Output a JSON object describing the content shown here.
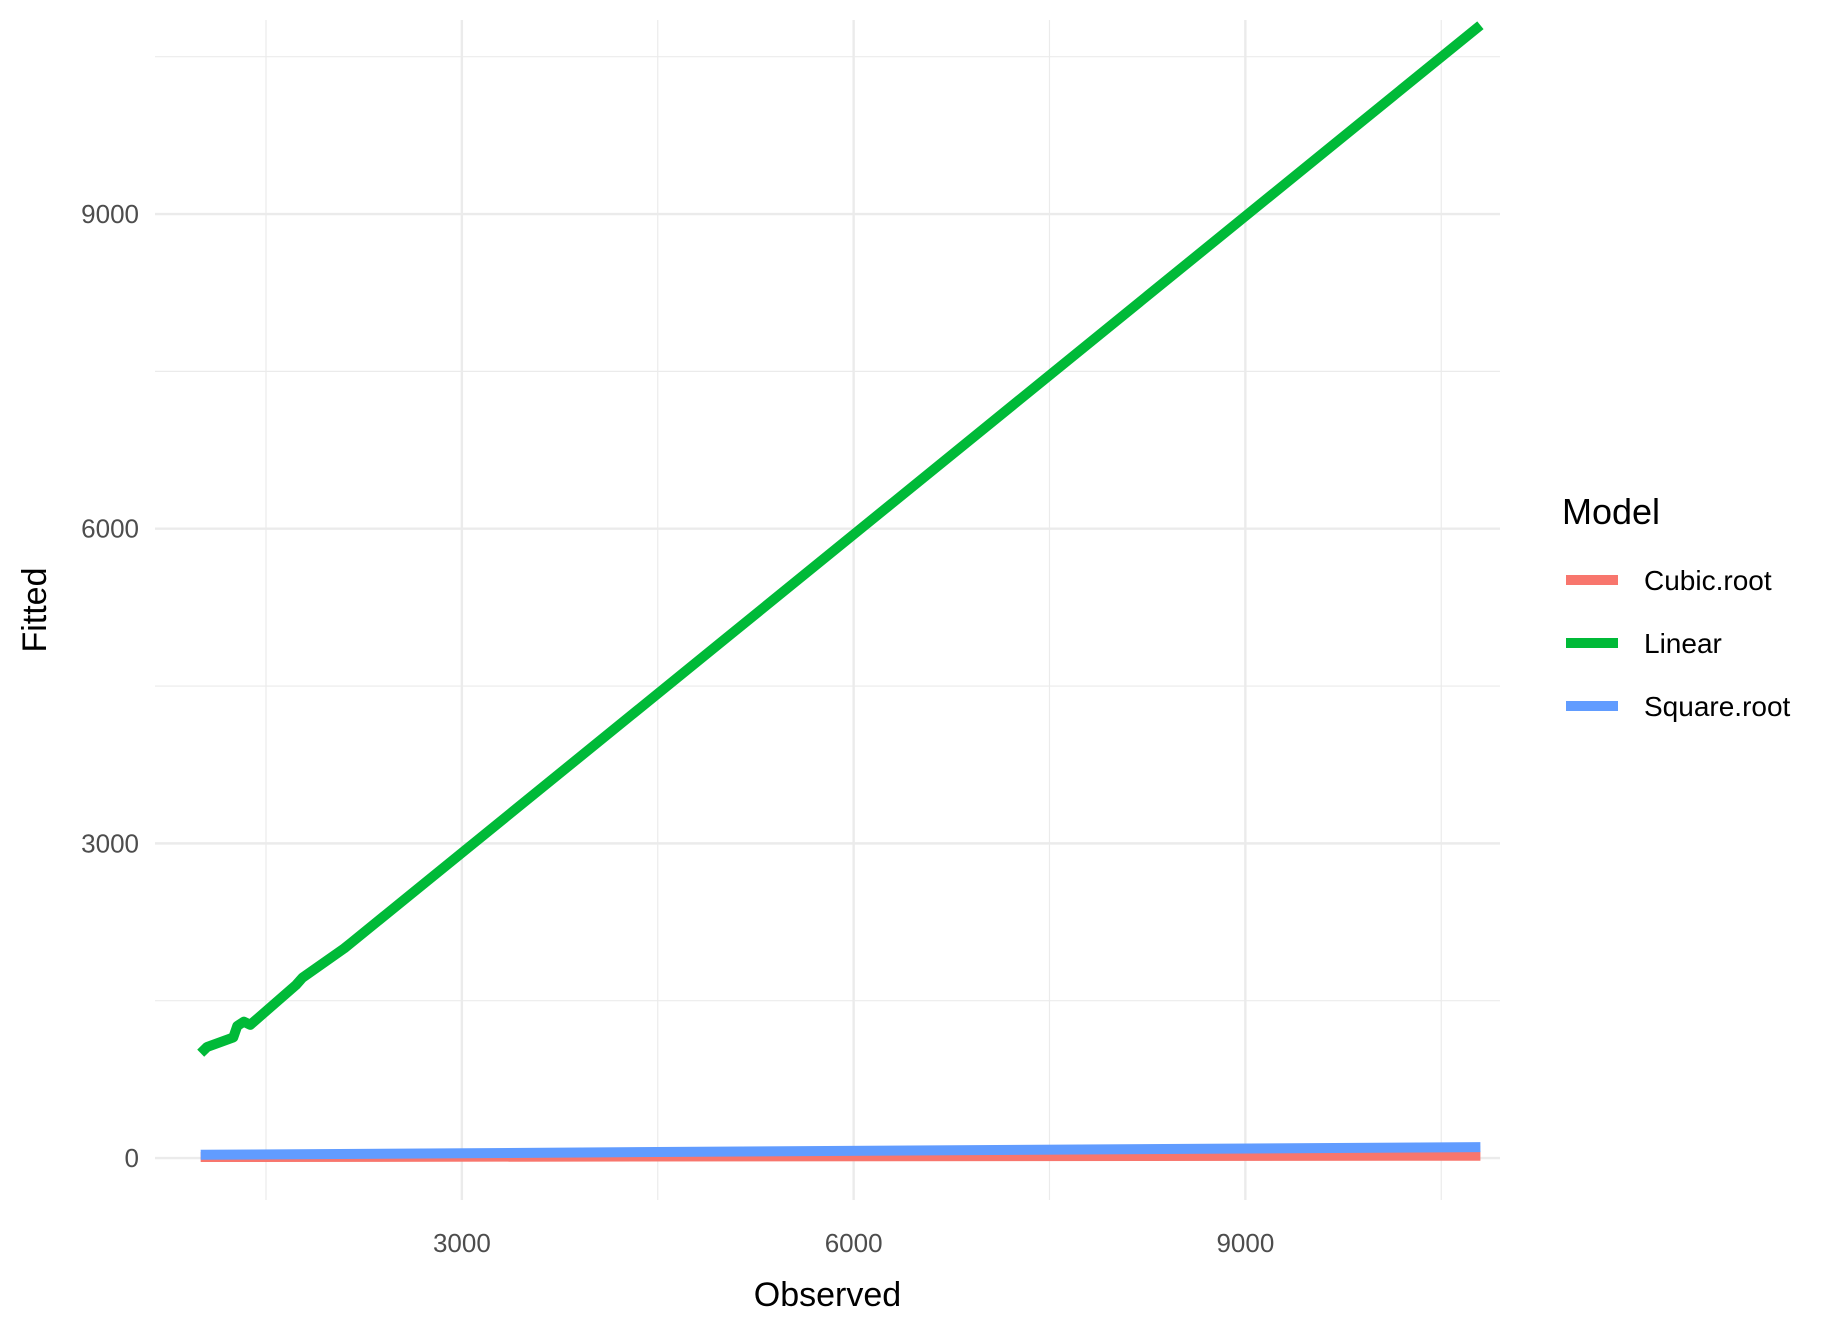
{
  "chart_data": {
    "type": "line",
    "title": "",
    "xlabel": "Observed",
    "ylabel": "Fitted",
    "xlim": [
      650,
      10950
    ],
    "ylim": [
      -400,
      10850
    ],
    "x_ticks": [
      3000,
      6000,
      9000
    ],
    "x_tick_labels": [
      "3000",
      "6000",
      "9000"
    ],
    "x_minor_ticks": [
      1500,
      4500,
      7500,
      10500
    ],
    "y_ticks": [
      0,
      3000,
      6000,
      9000
    ],
    "y_tick_labels": [
      "0",
      "3000",
      "6000",
      "9000"
    ],
    "y_minor_ticks": [
      1500,
      4500,
      7500,
      10500
    ],
    "grid": true,
    "legend": {
      "title": "Model",
      "position": "right"
    },
    "series": [
      {
        "name": "Cubic.root",
        "color": "#F8766D",
        "x": [
          1000,
          10800
        ],
        "y": [
          10,
          22
        ]
      },
      {
        "name": "Linear",
        "color": "#00BA38",
        "x": [
          1000,
          1050,
          1250,
          1280,
          1330,
          1380,
          1730,
          1780,
          2100,
          2150,
          10800
        ],
        "y": [
          1000,
          1060,
          1150,
          1260,
          1300,
          1270,
          1650,
          1720,
          2000,
          2050,
          10800
        ]
      },
      {
        "name": "Square.root",
        "color": "#619CFF",
        "x": [
          1000,
          10800
        ],
        "y": [
          31,
          104
        ]
      }
    ]
  }
}
